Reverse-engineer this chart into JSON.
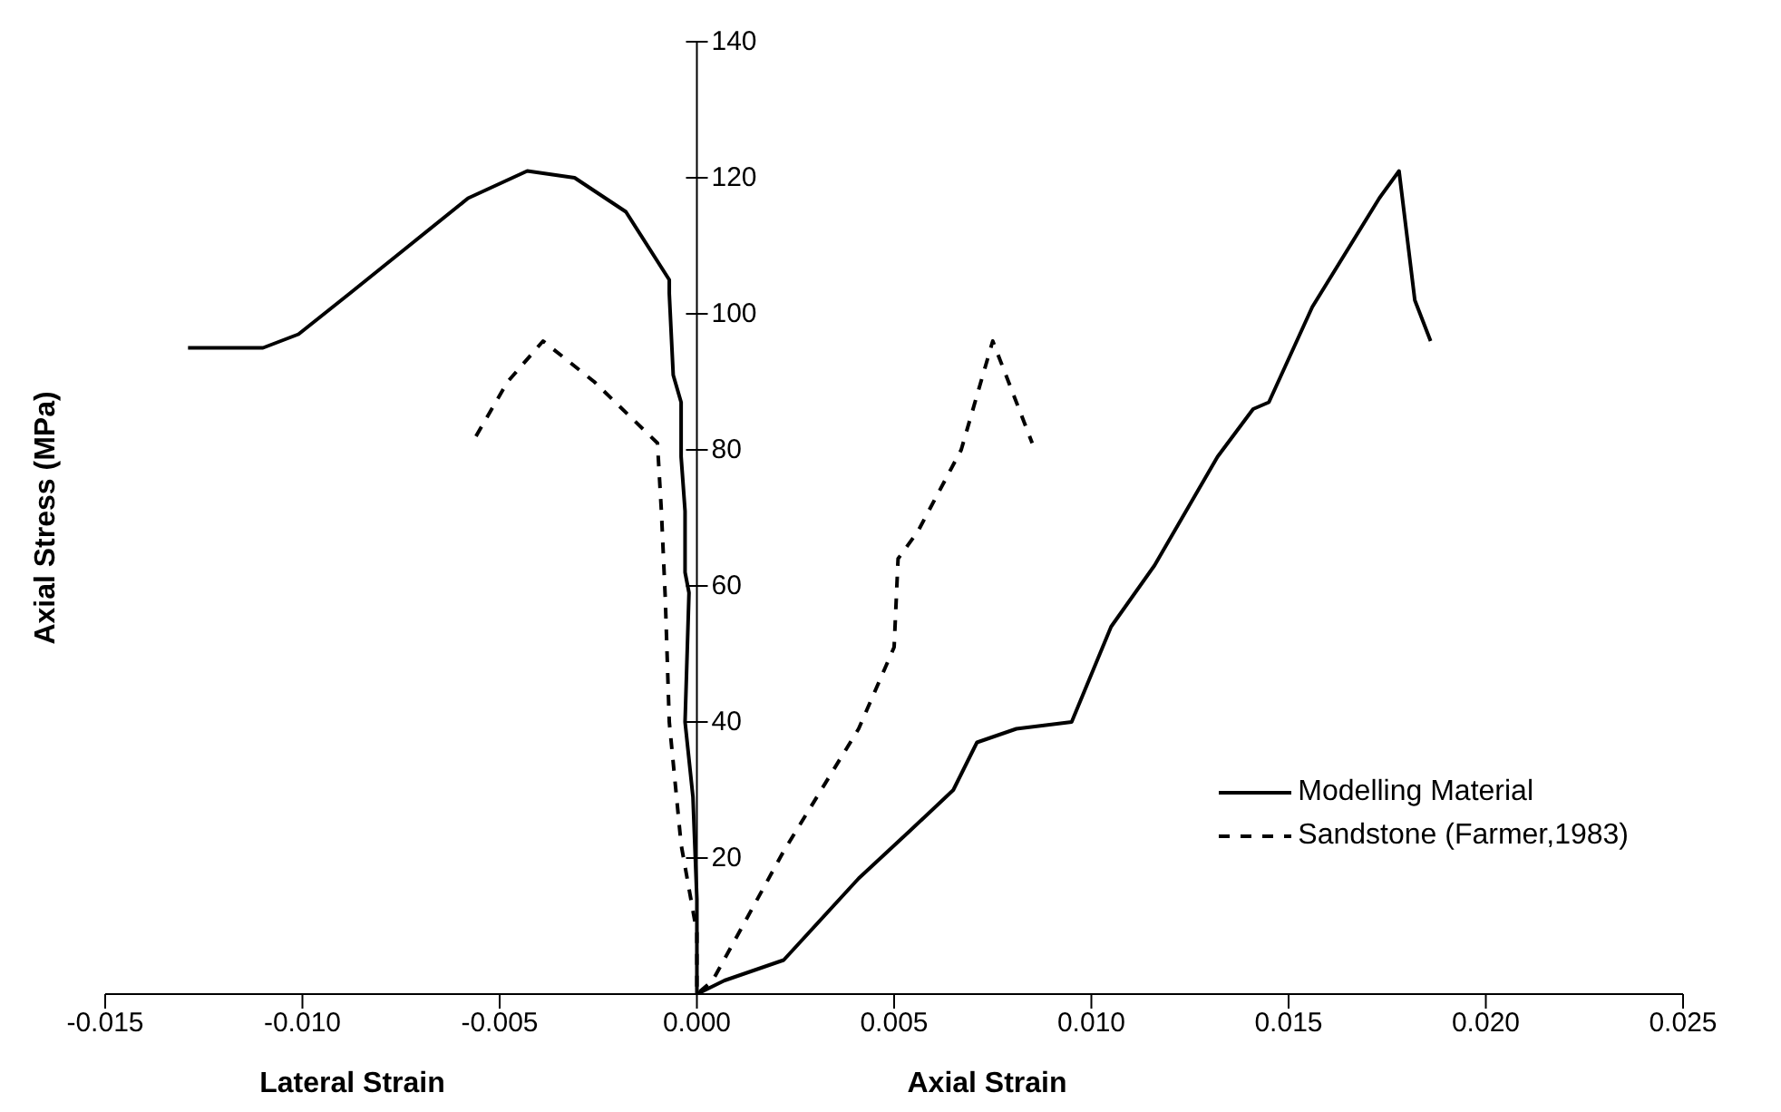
{
  "chart_data": {
    "type": "line",
    "xlabel": "Axial Strain",
    "ylabel": "Axial Stress (MPa)",
    "annotations": [
      "Lateral Strain"
    ],
    "xlim": [
      -0.015,
      0.025
    ],
    "xticks": [
      {
        "value": -0.015,
        "label": "-0.015"
      },
      {
        "value": -0.01,
        "label": "-0.010"
      },
      {
        "value": -0.005,
        "label": "-0.005"
      },
      {
        "value": 0,
        "label": "0.000"
      },
      {
        "value": 0.005,
        "label": "0.005"
      },
      {
        "value": 0.01,
        "label": "0.010"
      },
      {
        "value": 0.015,
        "label": "0.015"
      },
      {
        "value": 0.02,
        "label": "0.020"
      },
      {
        "value": 0.025,
        "label": "0.025"
      }
    ],
    "ylim": [
      0,
      140
    ],
    "yticks": [
      20,
      40,
      60,
      80,
      100,
      120,
      140
    ],
    "grid": false,
    "legend": "right",
    "marker": "none",
    "series": [
      {
        "name": "Modelling Material",
        "color": "#000000",
        "line_style": "solid",
        "x": [
          -0.0129,
          -0.011,
          -0.0101,
          -0.0088,
          -0.0073,
          -0.0058,
          -0.0043,
          -0.0031,
          -0.0018,
          -0.0007,
          -0.0007,
          -0.0006,
          -0.0004,
          -0.0004,
          -0.0003,
          -0.0003,
          -0.0002,
          -0.0003,
          -0.0001,
          0,
          0,
          0.0007,
          0.0022,
          0.0041,
          0.0054,
          0.0065,
          0.0071,
          0.0081,
          0.0095,
          0.0105,
          0.0116,
          0.0126,
          0.0132,
          0.0141,
          0.0145,
          0.0156,
          0.0173,
          0.0178,
          0.0182,
          0.0186
        ],
        "values": [
          95,
          95,
          97,
          103,
          110,
          117,
          121,
          120,
          115,
          105,
          103,
          91,
          87,
          79,
          71,
          62,
          59,
          40,
          29,
          14,
          0,
          2,
          5,
          17,
          24,
          30,
          37,
          39,
          40,
          54,
          63,
          73,
          79,
          86,
          87,
          101,
          117,
          121,
          102,
          96
        ]
      },
      {
        "name": "Sandstone (Farmer,1983)",
        "color": "#000000",
        "line_style": "dashed",
        "x": [
          -0.0056,
          -0.0048,
          -0.0039,
          -0.0026,
          -0.001,
          -0.0009,
          -0.0008,
          -0.0007,
          -0.0004,
          0,
          0,
          0.0004,
          0.0022,
          0.0041,
          0.005,
          0.0051,
          0.0056,
          0.0067,
          0.0075,
          0.0085
        ],
        "values": [
          82,
          90,
          96,
          90,
          81,
          71,
          58,
          40,
          22,
          9,
          0,
          2,
          21,
          39,
          51,
          64,
          68,
          80,
          96,
          81
        ]
      }
    ]
  }
}
